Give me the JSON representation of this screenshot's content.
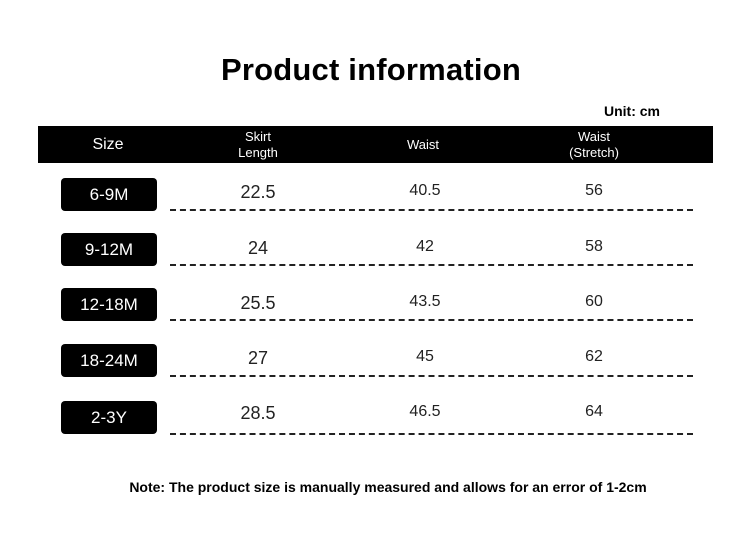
{
  "title": "Product information",
  "unit": "Unit: cm",
  "header": {
    "size": "Size",
    "skirt_line1": "Skirt",
    "skirt_line2": "Length",
    "waist": "Waist",
    "stretch_line1": "Waist",
    "stretch_line2": "(Stretch)"
  },
  "rows": [
    {
      "size": "6-9M",
      "skirt": "22.5",
      "waist": "40.5",
      "stretch": "56"
    },
    {
      "size": "9-12M",
      "skirt": "24",
      "waist": "42",
      "stretch": "58"
    },
    {
      "size": "12-18M",
      "skirt": "25.5",
      "waist": "43.5",
      "stretch": "60"
    },
    {
      "size": "18-24M",
      "skirt": "27",
      "waist": "45",
      "stretch": "62"
    },
    {
      "size": "2-3Y",
      "skirt": "28.5",
      "waist": "46.5",
      "stretch": "64"
    }
  ],
  "note": "Note: The product size is manually measured and allows for an error of 1-2cm"
}
